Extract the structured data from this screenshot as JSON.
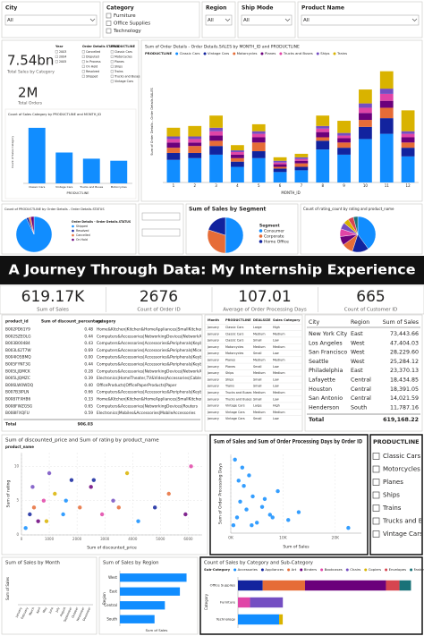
{
  "filters": [
    {
      "label": "City",
      "value": "All"
    },
    {
      "label": "Category",
      "options": [
        "Furniture",
        "Office Supplies",
        "Technology"
      ]
    },
    {
      "label": "Region",
      "value": "All"
    },
    {
      "label": "Ship Mode",
      "value": "All"
    },
    {
      "label": "Product Name",
      "value": "All"
    }
  ],
  "overview": {
    "kpis": [
      {
        "value": "7.54bn",
        "label": "Total Sales by Category"
      },
      {
        "value": "2M",
        "label": "Total Orders"
      }
    ],
    "slicers": [
      {
        "label": "Year",
        "options": [
          "2003",
          "2004",
          "2005"
        ]
      },
      {
        "label": "Order Details STATUS",
        "options": [
          "Cancelled",
          "Disputed",
          "In Process",
          "On Hold",
          "Resolved",
          "Shipped"
        ]
      },
      {
        "label": "PRODUCTLINE",
        "options": [
          "Classic Cars",
          "Motorcycles",
          "Planes",
          "Ships",
          "Trains",
          "Trucks and Buses",
          "Vintage Cars"
        ]
      }
    ],
    "chart": {
      "type": "bar",
      "title": "Count of Sales Category by PRODUCTLINE and MONTH_ID",
      "x_label": "PRODUCTLINE",
      "y_label": "Count of Sales Category",
      "categories": [
        "Classic Cars",
        "Vintage Cars",
        "Trucks and Buses",
        "Motorcycles"
      ],
      "values": [
        270,
        150,
        120,
        110
      ],
      "color": "#118dff",
      "ylim": [
        0,
        300
      ]
    }
  },
  "monthly_chart": {
    "type": "bar",
    "title": "Sum of Order Details - Order Details.SALES by MONTH_ID and PRODUCTLINE",
    "legend_title": "PRODUCTLINE",
    "x_label": "MONTH_ID",
    "y_label": "Sum of Order Details - Order Details.SALES",
    "categories": [
      "1",
      "2",
      "3",
      "4",
      "5",
      "6",
      "7",
      "8",
      "9",
      "10",
      "11",
      "12"
    ],
    "ylim": [
      0,
      700
    ],
    "series": [
      {
        "name": "Classic Cars",
        "color": "#118dff",
        "values": [
          130,
          140,
          160,
          90,
          140,
          60,
          70,
          190,
          160,
          250,
          280,
          150
        ]
      },
      {
        "name": "Vintage Cars",
        "color": "#12239e",
        "values": [
          40,
          30,
          50,
          30,
          40,
          20,
          20,
          50,
          40,
          70,
          90,
          50
        ]
      },
      {
        "name": "Motorcycles",
        "color": "#e66c37",
        "values": [
          30,
          40,
          30,
          20,
          50,
          10,
          20,
          20,
          30,
          40,
          60,
          30
        ]
      },
      {
        "name": "Planes",
        "color": "#6b007b",
        "values": [
          30,
          20,
          30,
          20,
          30,
          15,
          15,
          30,
          25,
          40,
          40,
          30
        ]
      },
      {
        "name": "Trucks and Buses",
        "color": "#e044a7",
        "values": [
          20,
          20,
          25,
          15,
          20,
          10,
          10,
          20,
          15,
          30,
          40,
          20
        ]
      },
      {
        "name": "Ships",
        "color": "#744ec2",
        "values": [
          15,
          15,
          20,
          10,
          15,
          10,
          10,
          15,
          15,
          25,
          30,
          15
        ]
      },
      {
        "name": "Trains",
        "color": "#d9b300",
        "values": [
          50,
          60,
          70,
          30,
          40,
          20,
          20,
          60,
          70,
          80,
          100,
          120
        ]
      }
    ]
  },
  "status_pie": {
    "type": "pie",
    "title": "Count of PRODUCTLINE by Order Details - Order Details.STATUS",
    "legend_title": "Order Details - Order Details.STATUS",
    "labels": [
      "Shipped",
      "Resolved",
      "Cancelled",
      "On Hold"
    ],
    "values": [
      93,
      2,
      2,
      3
    ],
    "colors": [
      "#118dff",
      "#12239e",
      "#e66c37",
      "#6b007b"
    ]
  },
  "segment_pie": {
    "type": "pie",
    "title": "Sum of Sales by Segment",
    "legend_title": "Segment",
    "labels": [
      "Consumer",
      "Corporate",
      "Home Office"
    ],
    "values": [
      50,
      30,
      20
    ],
    "colors": [
      "#118dff",
      "#e66c37",
      "#12239e"
    ]
  },
  "rating_pie": {
    "type": "pie",
    "title": "Count of rating_count by rating and product_name",
    "values": [
      40,
      15,
      10,
      8,
      7,
      6,
      5,
      5,
      4
    ],
    "colors": [
      "#118dff",
      "#12239e",
      "#e66c37",
      "#6b007b",
      "#e044a7",
      "#744ec2",
      "#d9b300",
      "#d64550",
      "#197278"
    ]
  },
  "banner": "A Journey Through Data: My Internship Experience",
  "kpis": [
    {
      "value": "619.17K",
      "label": "Sum of Sales"
    },
    {
      "value": "2676",
      "label": "Count of Order ID"
    },
    {
      "value": "107.01",
      "label": "Average of Order Processing Days"
    },
    {
      "value": "665",
      "label": "Count of Customer ID"
    }
  ],
  "product_table": {
    "columns": [
      "product_id",
      "Sum of discount_percentage",
      "category"
    ],
    "rows": [
      [
        "B002PD61Y9",
        "0.48",
        "Home&Kitchen|Kitchen&HomeAppliances|SmallKitchenA..."
      ],
      [
        "B002SZEOLG",
        "0.44",
        "Computers&Accessories|NetworkingDevices|NetworkA..."
      ],
      [
        "B003B00484",
        "0.43",
        "Computers&Accessories|Accessories&Peripherals|Keybo..."
      ],
      [
        "B003L62T7W",
        "0.69",
        "Computers&Accessories|Accessories&Peripherals|Mice"
      ],
      [
        "B004IO5BMQ",
        "0.00",
        "Computers&Accessories|Accessories&Peripherals|Keybo..."
      ],
      [
        "B005FYNT3G",
        "0.44",
        "Computers&Accessories|Accessories&Peripherals|Keybo..."
      ],
      [
        "B005LJQMCK",
        "0.28",
        "Computers&Accessories|NetworkingDevices|NetworkA..."
      ],
      [
        "B005LJQMZC",
        "0.39",
        "Electronics|HomeTheater,TV&Video|Accessories|Cables"
      ],
      [
        "B006LW0WDQ",
        "0.40",
        "OfficeProducts|OfficePaperProducts|Paper"
      ],
      [
        "B007B3IPLN",
        "0.66",
        "Computers&Accessories|Accessories&Peripherals|Keybo..."
      ],
      [
        "B0087FXHB6",
        "0.33",
        "Home&Kitchen|Kitchen&HomeAppliances|SmallKitchenA..."
      ],
      [
        "B008FWZGSG",
        "0.65",
        "Computers&Accessories|NetworkingDevices|Routers"
      ],
      [
        "B008IFXQFU",
        "0.59",
        "Electronics|Mobiles&Accessories|MobileAccessories"
      ]
    ],
    "total": {
      "label": "Total",
      "value": "906.03"
    }
  },
  "sales_table": {
    "columns": [
      "Month",
      "PRODUCTLINE",
      "DEALSIZE",
      "Sales Category"
    ],
    "rows": [
      [
        "January",
        "Classic Cars",
        "Large",
        "High"
      ],
      [
        "January",
        "Classic Cars",
        "Medium",
        "Medium"
      ],
      [
        "January",
        "Classic Cars",
        "Small",
        "Low"
      ],
      [
        "January",
        "Motorcycles",
        "Medium",
        "Medium"
      ],
      [
        "January",
        "Motorcycles",
        "Small",
        "Low"
      ],
      [
        "January",
        "Planes",
        "Medium",
        "Medium"
      ],
      [
        "January",
        "Planes",
        "Small",
        "Low"
      ],
      [
        "January",
        "Ships",
        "Medium",
        "Medium"
      ],
      [
        "January",
        "Ships",
        "Small",
        "Low"
      ],
      [
        "January",
        "Trains",
        "Small",
        "Low"
      ],
      [
        "January",
        "Trucks and Buses",
        "Medium",
        "Medium"
      ],
      [
        "January",
        "Trucks and Buses",
        "Small",
        "Low"
      ],
      [
        "January",
        "Vintage Cars",
        "Large",
        "High"
      ],
      [
        "January",
        "Vintage Cars",
        "Medium",
        "Medium"
      ],
      [
        "January",
        "Vintage Cars",
        "Small",
        "Low"
      ]
    ]
  },
  "city_table": {
    "columns": [
      "City",
      "Region",
      "Sum of Sales"
    ],
    "rows": [
      [
        "New York City",
        "East",
        "73,443.66"
      ],
      [
        "Los Angeles",
        "West",
        "47,404.03"
      ],
      [
        "San Francisco",
        "West",
        "28,229.60"
      ],
      [
        "Seattle",
        "West",
        "25,284.12"
      ],
      [
        "Philadelphia",
        "East",
        "23,370.13"
      ],
      [
        "Lafayette",
        "Central",
        "18,434.85"
      ],
      [
        "Houston",
        "Central",
        "18,391.05"
      ],
      [
        "San Antonio",
        "Central",
        "14,021.59"
      ],
      [
        "Henderson",
        "South",
        "11,787.16"
      ]
    ],
    "total": {
      "label": "Total",
      "value": "619,168.22"
    }
  },
  "price_scatter": {
    "type": "scatter",
    "title": "Sum of discounted_price and Sum of rating by product_name",
    "legend_title": "product_name",
    "x_label": "Sum of discounted_price",
    "y_label": "Sum of rating",
    "xlim": [
      0,
      6500
    ],
    "xticks": [
      0,
      1000,
      2000,
      3000,
      4000,
      5000,
      6000
    ],
    "ylim": [
      0,
      12
    ],
    "yticks": [
      0,
      5,
      10
    ],
    "colors": [
      "#118dff",
      "#12239e",
      "#e66c37",
      "#6b007b",
      "#e044a7",
      "#744ec2",
      "#d9b300"
    ],
    "x": [
      150,
      300,
      450,
      600,
      800,
      1000,
      1200,
      1500,
      1800,
      2100,
      2500,
      2900,
      3300,
      3800,
      4200,
      4800,
      5300,
      5900,
      6100,
      400,
      900,
      1600,
      2600,
      3500
    ],
    "y": [
      1,
      3,
      4,
      2,
      5,
      9,
      6,
      3,
      8,
      4,
      7,
      3,
      5,
      9,
      2,
      4,
      6,
      3,
      10,
      7,
      2,
      5,
      8,
      4
    ]
  },
  "order_scatter": {
    "type": "scatter",
    "title": "Sum of Sales and Sum of Order Processing Days by Order ID",
    "x_label": "Sum of Sales",
    "y_label": "Sum of Order Processing Days",
    "xlim": [
      0,
      25000
    ],
    "xticks": [
      {
        "value": 0,
        "label": "0K"
      },
      {
        "value": 10000,
        "label": "10K"
      },
      {
        "value": 20000,
        "label": "20K"
      }
    ],
    "ylim": [
      0,
      1500
    ],
    "colors": [
      "#118dff"
    ],
    "x": [
      500,
      1200,
      1800,
      2500,
      3000,
      3500,
      4200,
      5000,
      6000,
      7500,
      9000,
      11000,
      13000,
      2200,
      1500,
      800,
      4000,
      6500,
      8000,
      22500
    ],
    "y": [
      150,
      300,
      600,
      900,
      450,
      1100,
      700,
      200,
      500,
      350,
      800,
      250,
      400,
      1250,
      1000,
      1400,
      150,
      650,
      300,
      100
    ]
  },
  "productline_slicer": {
    "title": "PRODUCTLINE",
    "options": [
      "Classic Cars",
      "Motorcycles",
      "Planes",
      "Ships",
      "Trains",
      "Trucks and Buses",
      "Vintage Cars"
    ]
  },
  "month_line": {
    "type": "line",
    "title": "Sum of Sales by Month",
    "y_label": "Sum of Sales",
    "color": "#118dff",
    "categories": [
      "January",
      "February",
      "March",
      "April",
      "May",
      "June",
      "July",
      "August",
      "September",
      "October",
      "November",
      "December"
    ],
    "values": [
      95000,
      80000,
      55000,
      52000,
      48000,
      50000,
      48000,
      45000,
      40000,
      44000,
      35000,
      42000
    ],
    "ylim": [
      0,
      100000
    ]
  },
  "region_bar": {
    "type": "hbar",
    "title": "Sum of Sales by Region",
    "y_label": "Region",
    "x_label": "Sum of Sales",
    "color": "#118dff",
    "categories": [
      "West",
      "East",
      "Central",
      "South"
    ],
    "values": [
      200000,
      180000,
      135000,
      104000
    ],
    "xlim": [
      0,
      220000
    ]
  },
  "category_bar": {
    "type": "hbar",
    "title": "Count of Sales by Category and Sub-Category",
    "legend_title": "Sub-Category",
    "y_label": "Category",
    "categories": [
      "Office Supplies",
      "Furniture",
      "Technology"
    ],
    "xlim": [
      0,
      3400
    ],
    "series": [
      {
        "name": "Accessories",
        "color": "#118dff",
        "values": [
          0,
          0,
          775
        ]
      },
      {
        "name": "Appliances",
        "color": "#12239e",
        "values": [
          466,
          0,
          0
        ]
      },
      {
        "name": "Art",
        "color": "#e66c37",
        "values": [
          796,
          0,
          0
        ]
      },
      {
        "name": "Binders",
        "color": "#6b007b",
        "values": [
          1523,
          0,
          0
        ]
      },
      {
        "name": "Bookcases",
        "color": "#e044a7",
        "values": [
          0,
          228,
          0
        ]
      },
      {
        "name": "Chairs",
        "color": "#744ec2",
        "values": [
          0,
          617,
          0
        ]
      },
      {
        "name": "Copiers",
        "color": "#d9b300",
        "values": [
          0,
          0,
          68
        ]
      },
      {
        "name": "Envelopes",
        "color": "#d64550",
        "values": [
          254,
          0,
          0
        ]
      },
      {
        "name": "Fasteners",
        "color": "#197278",
        "values": [
          217,
          0,
          0
        ]
      }
    ]
  }
}
